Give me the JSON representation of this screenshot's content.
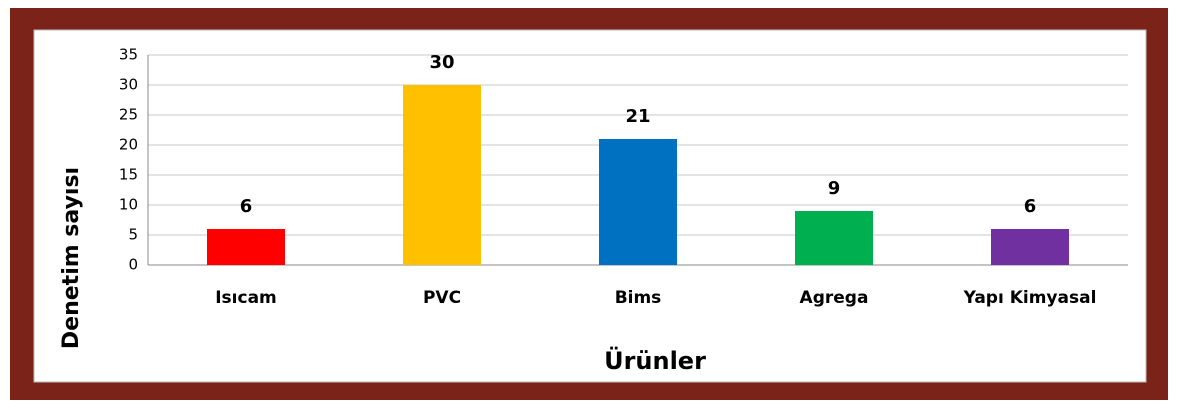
{
  "chart_data": {
    "type": "bar",
    "xlabel": "Ürünler",
    "ylabel": "Denetim sayısı",
    "categories": [
      "Isıcam",
      "PVC",
      "Bims",
      "Agrega",
      "Yapı Kimyasal"
    ],
    "values": [
      6,
      30,
      21,
      9,
      6
    ],
    "colors": [
      "#ff0000",
      "#ffc000",
      "#0070c0",
      "#00b050",
      "#7030a0"
    ],
    "ylim": [
      0,
      35
    ],
    "yticks": [
      0,
      5,
      10,
      15,
      20,
      25,
      30,
      35
    ],
    "grid": true
  }
}
